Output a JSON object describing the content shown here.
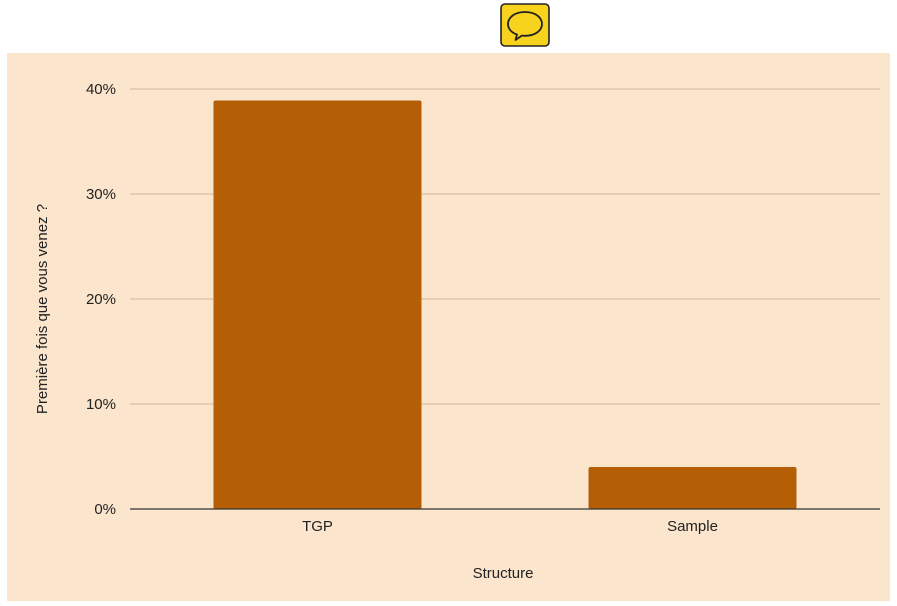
{
  "colors": {
    "background": "#fbe5cd",
    "bar": "#b45f06",
    "gridline": "#d2b89c",
    "baseline": "#333333",
    "icon_fill": "#f8d31d"
  },
  "comment_icon": "speech-bubble-icon",
  "chart_data": {
    "type": "bar",
    "categories": [
      "TGP",
      "Sample"
    ],
    "values": [
      38.9,
      4.0
    ],
    "title": "",
    "xlabel": "Structure",
    "ylabel": "Première fois que vous venez ?",
    "ylim": [
      0,
      40
    ],
    "yticks": [
      "0%",
      "10%",
      "20%",
      "30%",
      "40%"
    ],
    "ytick_values": [
      0,
      10,
      20,
      30,
      40
    ],
    "grid": true,
    "legend": "none"
  }
}
